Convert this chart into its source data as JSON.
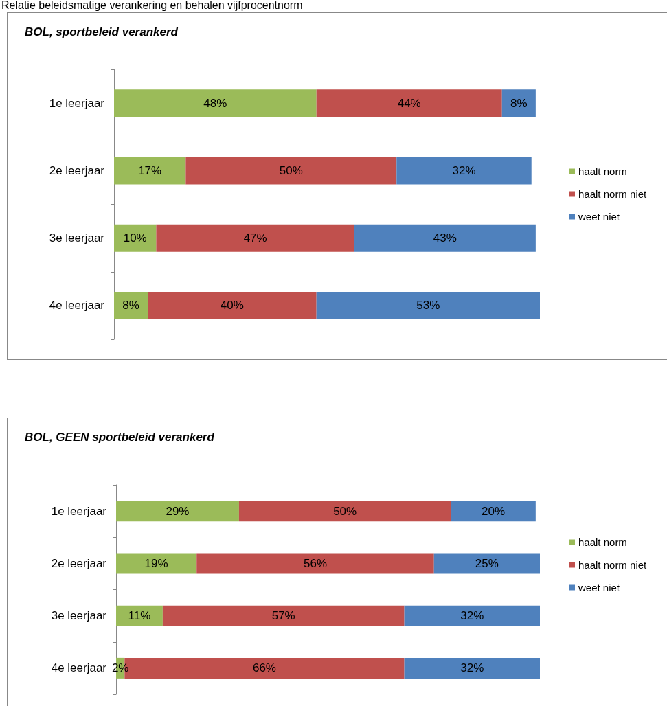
{
  "chart_data": [
    {
      "type": "bar",
      "orientation": "horizontal",
      "stacked": true,
      "title": "BOL, sportbeleid verankerd",
      "annotations": [
        "Relatie beleidsmatige verankering en behalen vijfprocentnorm"
      ],
      "categories": [
        "1e leerjaar",
        "2e leerjaar",
        "3e leerjaar",
        "4e leerjaar"
      ],
      "legend": "right",
      "grid": false,
      "series": [
        {
          "name": "haalt norm",
          "color": "#9bbb59",
          "values": [
            48,
            17,
            10,
            8
          ],
          "value_labels": [
            "48%",
            "17%",
            "10%",
            "8%"
          ]
        },
        {
          "name": "haalt norm niet",
          "color": "#c0504d",
          "values": [
            44,
            50,
            47,
            40
          ],
          "value_labels": [
            "44%",
            "50%",
            "47%",
            "40%"
          ]
        },
        {
          "name": "weet niet",
          "color": "#4f81bd",
          "values": [
            8,
            32,
            43,
            53
          ],
          "value_labels": [
            "8%",
            "32%",
            "43%",
            "53%"
          ]
        }
      ]
    },
    {
      "type": "bar",
      "orientation": "horizontal",
      "stacked": true,
      "title": "BOL, GEEN sportbeleid verankerd",
      "categories": [
        "1e leerjaar",
        "2e leerjaar",
        "3e leerjaar",
        "4e leerjaar"
      ],
      "legend": "right",
      "grid": false,
      "series": [
        {
          "name": "haalt norm",
          "color": "#9bbb59",
          "values": [
            29,
            19,
            11,
            2
          ],
          "value_labels": [
            "29%",
            "19%",
            "11%",
            "2%"
          ]
        },
        {
          "name": "haalt norm niet",
          "color": "#c0504d",
          "values": [
            50,
            56,
            57,
            66
          ],
          "value_labels": [
            "50%",
            "56%",
            "57%",
            "66%"
          ]
        },
        {
          "name": "weet niet",
          "color": "#4f81bd",
          "values": [
            20,
            25,
            32,
            32
          ],
          "value_labels": [
            "20%",
            "25%",
            "32%",
            "32%"
          ]
        }
      ]
    }
  ]
}
